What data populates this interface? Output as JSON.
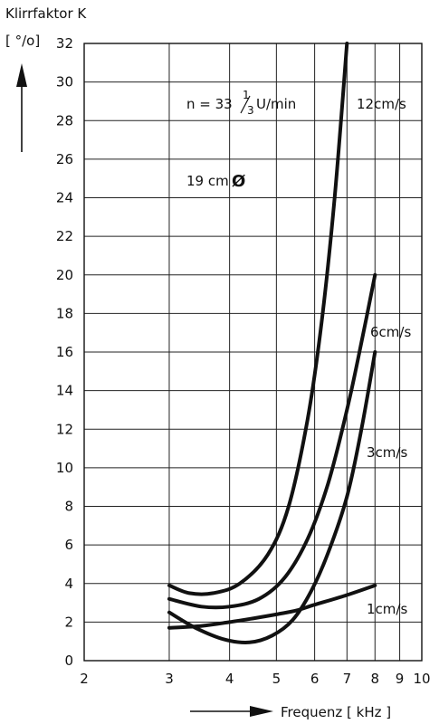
{
  "chart_data": {
    "type": "line",
    "ylabel_line1": "Klirrfaktor K",
    "ylabel_line2": "[ °/o]",
    "xlabel": "Frequenz [ kHz ]",
    "x_scale": "log",
    "xlim": [
      2,
      10
    ],
    "ylim": [
      0,
      32
    ],
    "x_ticks": [
      "2",
      "3",
      "4",
      "5",
      "6",
      "7",
      "8",
      "9",
      "10"
    ],
    "x_tick_values": [
      2,
      3,
      4,
      5,
      6,
      7,
      8,
      9,
      10
    ],
    "y_ticks": [
      "0",
      "2",
      "4",
      "6",
      "8",
      "10",
      "12",
      "14",
      "16",
      "18",
      "20",
      "22",
      "24",
      "26",
      "28",
      "30",
      "32"
    ],
    "y_tick_values": [
      0,
      2,
      4,
      6,
      8,
      10,
      12,
      14,
      16,
      18,
      20,
      22,
      24,
      26,
      28,
      30,
      32
    ],
    "grid": true,
    "annotations": {
      "speed_prefix": "n = 33",
      "speed_frac_num": "1",
      "speed_frac_den": "3",
      "speed_unit": "U/min",
      "diameter": "19 cm",
      "diameter_symbol": "Ø"
    },
    "series": [
      {
        "name": "12cm/s",
        "x": [
          3.0,
          3.3,
          3.7,
          4.2,
          4.8,
          5.3,
          5.8,
          6.2,
          6.6,
          7.0
        ],
        "y": [
          3.9,
          3.5,
          3.5,
          4.0,
          5.5,
          8.0,
          12.5,
          17.5,
          24.0,
          32.0
        ]
      },
      {
        "name": "6cm/s",
        "x": [
          3.0,
          3.5,
          4.0,
          4.6,
          5.2,
          5.8,
          6.4,
          7.0,
          7.5,
          8.0
        ],
        "y": [
          3.2,
          2.8,
          2.8,
          3.2,
          4.3,
          6.3,
          9.2,
          13.0,
          16.5,
          20.0
        ]
      },
      {
        "name": "3cm/s",
        "x": [
          3.0,
          3.4,
          3.9,
          4.4,
          4.9,
          5.4,
          5.9,
          6.4,
          7.0,
          7.5,
          8.0
        ],
        "y": [
          2.5,
          1.7,
          1.1,
          0.95,
          1.3,
          2.1,
          3.6,
          5.6,
          8.5,
          12.0,
          16.0
        ]
      },
      {
        "name": "1cm/s",
        "x": [
          3.0,
          3.5,
          4.0,
          4.5,
          5.0,
          5.5,
          6.0,
          7.0,
          8.0
        ],
        "y": [
          1.7,
          1.8,
          2.0,
          2.2,
          2.4,
          2.6,
          2.9,
          3.4,
          3.9
        ]
      }
    ]
  }
}
